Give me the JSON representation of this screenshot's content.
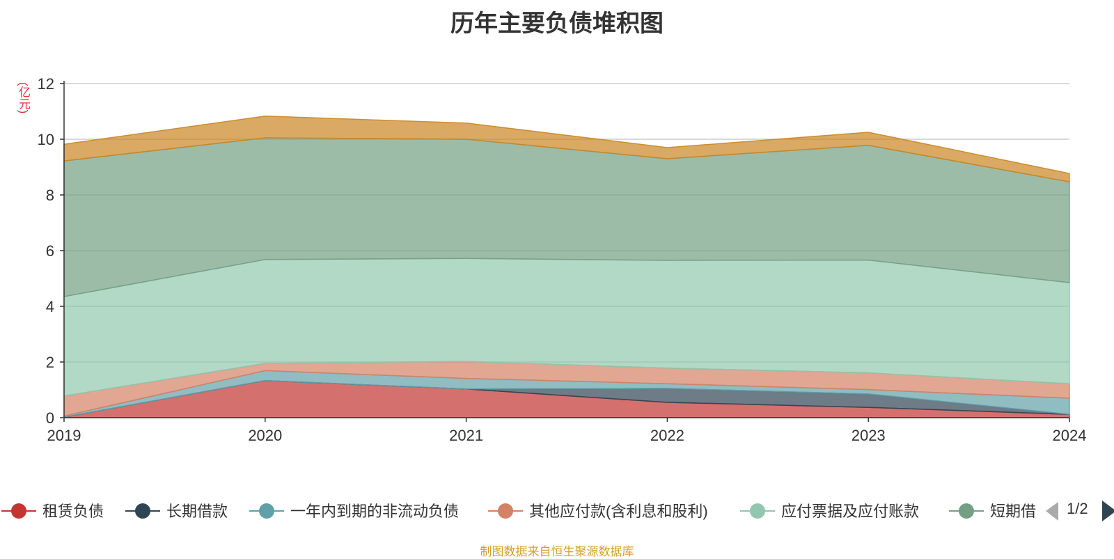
{
  "chart_data": {
    "type": "area",
    "stacked": true,
    "title": "历年主要负债堆积图",
    "unit_label": "(亿元)",
    "ylim": [
      0,
      12
    ],
    "yticks": [
      "0",
      "2",
      "4",
      "6",
      "8",
      "10",
      "12"
    ],
    "categories": [
      "2019",
      "2020",
      "2021",
      "2022",
      "2023",
      "2024"
    ],
    "grid": true,
    "legend_position": "bottom",
    "series": [
      {
        "name": "租赁负债",
        "color": "#c23531",
        "values": [
          0.02,
          1.33,
          1.03,
          0.55,
          0.37,
          0.12
        ]
      },
      {
        "name": "长期借款",
        "color": "#2f4554",
        "values": [
          0.0,
          0.0,
          0.0,
          0.5,
          0.48,
          0.0
        ]
      },
      {
        "name": "一年内到期的非流动负债",
        "color": "#61a0a8",
        "values": [
          0.04,
          0.36,
          0.38,
          0.17,
          0.16,
          0.58
        ]
      },
      {
        "name": "其他应付款(含利息和股利)",
        "color": "#d48265",
        "values": [
          0.72,
          0.26,
          0.61,
          0.56,
          0.6,
          0.52
        ]
      },
      {
        "name": "应付票据及应付账款",
        "color": "#91c7ae",
        "values": [
          3.57,
          3.73,
          3.7,
          3.87,
          4.05,
          3.63
        ]
      },
      {
        "name": "短期借款",
        "color": "#749f83",
        "values": [
          4.87,
          4.37,
          4.28,
          3.65,
          4.12,
          3.62
        ]
      },
      {
        "name": "",
        "color": "#ca8622",
        "values": [
          0.6,
          0.78,
          0.58,
          0.4,
          0.47,
          0.3
        ]
      }
    ]
  },
  "legend": {
    "items": [
      "租赁负债",
      "长期借款",
      "一年内到期的非流动负债",
      "其他应付款(含利息和股利)",
      "应付票据及应付账款",
      "短期借"
    ],
    "page": "1/2"
  },
  "footer": "制图数据来自恒生聚源数据库",
  "colors": {
    "axis": "#333333",
    "grid": "#cccccc",
    "unit": "#e8313a",
    "footer": "#d4a128"
  }
}
